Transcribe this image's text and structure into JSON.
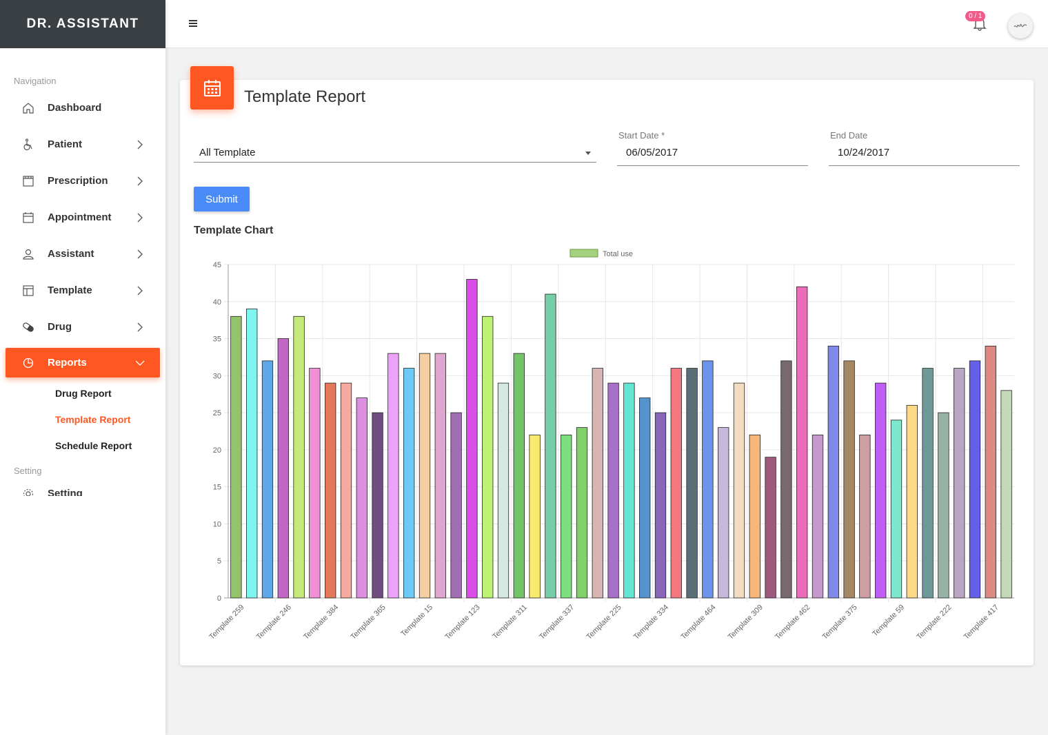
{
  "brand": "DR. ASSISTANT",
  "nav": {
    "section_navigation": "Navigation",
    "section_setting": "Setting",
    "items": [
      {
        "label": "Dashboard",
        "icon": "home-icon"
      },
      {
        "label": "Patient",
        "icon": "wheelchair-icon"
      },
      {
        "label": "Prescription",
        "icon": "prescription-icon"
      },
      {
        "label": "Appointment",
        "icon": "calendar-icon"
      },
      {
        "label": "Assistant",
        "icon": "user-icon"
      },
      {
        "label": "Template",
        "icon": "template-icon"
      },
      {
        "label": "Drug",
        "icon": "pill-icon"
      }
    ],
    "reports_label": "Reports",
    "sub_items": [
      "Drug Report",
      "Template Report",
      "Schedule Report"
    ],
    "cut_item_label": "Setting"
  },
  "topbar": {
    "notification_badge": "0 / 1"
  },
  "page": {
    "title": "Template Report",
    "template_select_value": "All Template",
    "start_date_label": "Start Date  *",
    "start_date_value": "06/05/2017",
    "end_date_label": "End Date",
    "end_date_value": "10/24/2017",
    "submit_label": "Submit",
    "chart_heading": "Template Chart"
  },
  "chart_data": {
    "type": "bar",
    "title": "Template Chart",
    "legend": "Total use",
    "legend_color": "#a5d17e",
    "ylim": [
      0,
      45
    ],
    "yticks": [
      0,
      5,
      10,
      15,
      20,
      25,
      30,
      35,
      40,
      45
    ],
    "x_tick_labels": [
      "Template 259",
      "Template 246",
      "Template 384",
      "Template 365",
      "Template 15",
      "Template 123",
      "Template 311",
      "Template 337",
      "Template 225",
      "Template 334",
      "Template 464",
      "Template 309",
      "Template 462",
      "Template 375",
      "Template 59",
      "Template 222",
      "Template 417"
    ],
    "values": [
      38,
      39,
      32,
      35,
      38,
      31,
      29,
      29,
      27,
      25,
      33,
      31,
      33,
      33,
      25,
      43,
      38,
      29,
      33,
      22,
      41,
      22,
      23,
      31,
      29,
      29,
      27,
      25,
      31,
      31,
      32,
      23,
      29,
      22,
      19,
      32,
      42,
      22,
      34,
      32,
      22,
      29,
      24,
      26,
      31,
      25,
      31,
      32,
      34,
      28
    ],
    "colors": [
      "#94c46a",
      "#7ff5ef",
      "#5fa8e8",
      "#c367c6",
      "#c6ea7a",
      "#ef8fd5",
      "#e5785c",
      "#f5aaa0",
      "#dc8ee0",
      "#6f4d7e",
      "#eda1fb",
      "#6ccbf6",
      "#f3cfa2",
      "#dfa6cf",
      "#9f6fb2",
      "#d84ee6",
      "#bdf275",
      "#d4e8e0",
      "#74c569",
      "#f7ea6c",
      "#76cfa7",
      "#7ee07c",
      "#80d06b",
      "#d7b5b3",
      "#a671c9",
      "#63e5d4",
      "#5493cb",
      "#8a66ba",
      "#f3777f",
      "#5c6e75",
      "#6a94ec",
      "#c6b7dc",
      "#f3dcc2",
      "#f8b77a",
      "#9e5a7d",
      "#77696f",
      "#ec6cb9",
      "#c49acd",
      "#8189e8",
      "#a58863",
      "#cd9fa0",
      "#c15ef8",
      "#7de8cd",
      "#fbd986",
      "#6f9998",
      "#97b3a6",
      "#b9a6c5",
      "#6460ec",
      "#dd8984",
      "#c3d9b7"
    ]
  }
}
